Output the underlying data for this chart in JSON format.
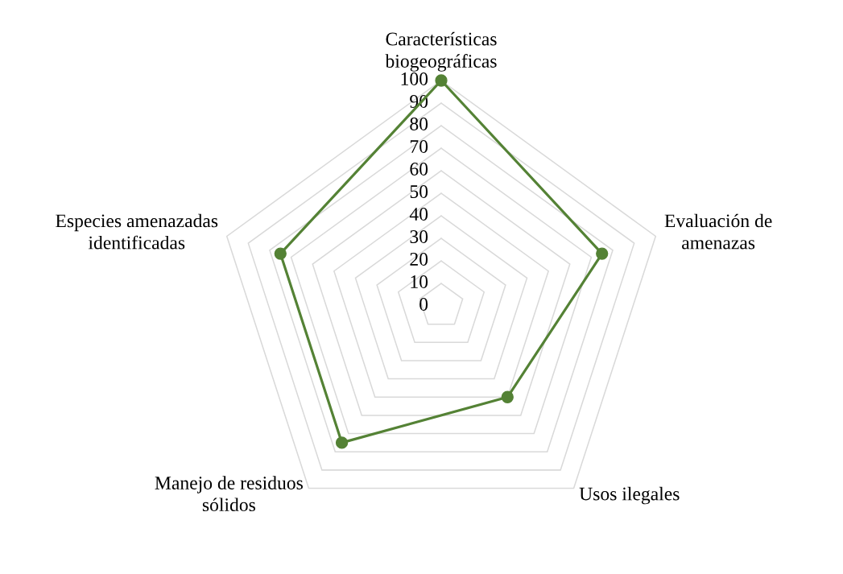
{
  "chart_data": {
    "type": "radar",
    "categories": [
      "Características\nbiogeográficas",
      "Evaluación de\namenazas",
      "Usos ilegales",
      "Manejo de residuos\nsólidos",
      "Especies amenazadas\nidentificadas"
    ],
    "series": [
      {
        "color": "#548235",
        "values": [
          100,
          75,
          50,
          75,
          75
        ]
      }
    ],
    "ylim": [
      0,
      100
    ],
    "yticks": [
      0,
      10,
      20,
      30,
      40,
      50,
      60,
      70,
      80,
      90,
      100
    ],
    "grid": true,
    "marker": "circle",
    "line_style": "solid"
  }
}
